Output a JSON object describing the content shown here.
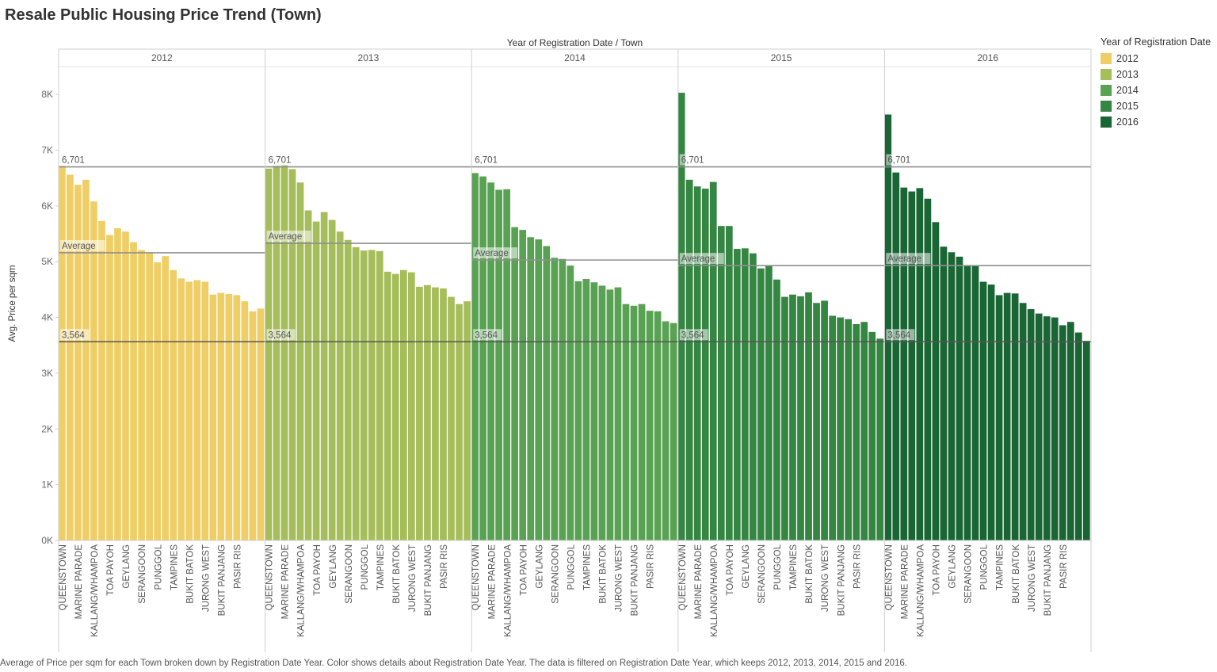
{
  "title": "Resale Public Housing Price Trend (Town)",
  "caption": "Average of Price per sqm for each Town broken down by Registration Date Year.  Color shows details about Registration Date Year. The data is filtered on Registration Date Year, which keeps 2012, 2013, 2014, 2015 and 2016.",
  "legend": {
    "title": "Year of Registration Date",
    "items": [
      {
        "label": "2012",
        "color": "#F0CE66"
      },
      {
        "label": "2013",
        "color": "#A6BD5B"
      },
      {
        "label": "2014",
        "color": "#59A253"
      },
      {
        "label": "2015",
        "color": "#358543"
      },
      {
        "label": "2016",
        "color": "#1A6534"
      }
    ]
  },
  "chart_data": {
    "type": "bar",
    "column_header": "Year of Registration Date  /  Town",
    "ylabel": "Avg. Price per sqm",
    "ylim": [
      0,
      8500
    ],
    "yticks": [
      "0K",
      "1K",
      "2K",
      "3K",
      "4K",
      "5K",
      "6K",
      "7K",
      "8K"
    ],
    "reference_lines": {
      "max_label": "6,701",
      "max_value": 6701,
      "min_label": "3,564",
      "min_value": 3564,
      "average_label": "Average"
    },
    "visible_town_labels": [
      "QUEENSTOWN",
      "MARINE PARADE",
      "KALLANG/WHAMPOA",
      "TOA PAYOH",
      "GEYLANG",
      "SERANGOON",
      "PUNGGOL",
      "TAMPINES",
      "BUKIT BATOK",
      "JURONG WEST",
      "BUKIT PANJANG",
      "PASIR RIS"
    ],
    "panels": [
      {
        "year": "2012",
        "color": "#F0CE66",
        "average": 5160,
        "values": [
          6720,
          6560,
          6380,
          6470,
          6080,
          5730,
          5480,
          5600,
          5540,
          5350,
          5210,
          5160,
          4990,
          5100,
          4850,
          4700,
          4640,
          4670,
          4640,
          4410,
          4440,
          4420,
          4400,
          4290,
          4110,
          4160
        ]
      },
      {
        "year": "2013",
        "color": "#A6BD5B",
        "average": 5330,
        "values": [
          6670,
          6720,
          6730,
          6660,
          6420,
          5920,
          5720,
          5890,
          5750,
          5540,
          5390,
          5260,
          5200,
          5210,
          5190,
          4820,
          4780,
          4850,
          4810,
          4550,
          4580,
          4540,
          4520,
          4370,
          4240,
          4290
        ]
      },
      {
        "year": "2014",
        "color": "#59A253",
        "average": 5030,
        "values": [
          6590,
          6530,
          6420,
          6290,
          6300,
          5620,
          5570,
          5440,
          5400,
          5280,
          5070,
          5050,
          4930,
          4650,
          4690,
          4630,
          4570,
          4500,
          4540,
          4240,
          4210,
          4240,
          4120,
          4110,
          3930,
          3900
        ]
      },
      {
        "year": "2015",
        "color": "#358543",
        "average": 4930,
        "values": [
          8030,
          6470,
          6350,
          6310,
          6430,
          5640,
          5640,
          5230,
          5240,
          5150,
          4880,
          4920,
          4680,
          4370,
          4410,
          4380,
          4450,
          4260,
          4300,
          4030,
          4000,
          3970,
          3880,
          3920,
          3740,
          3620
        ]
      },
      {
        "year": "2016",
        "color": "#1A6534",
        "average": 4930,
        "values": [
          7640,
          6600,
          6330,
          6260,
          6320,
          6130,
          5710,
          5270,
          5170,
          5090,
          4940,
          4930,
          4640,
          4590,
          4400,
          4440,
          4430,
          4260,
          4150,
          4070,
          4020,
          4000,
          3860,
          3920,
          3730,
          3580
        ]
      }
    ]
  }
}
